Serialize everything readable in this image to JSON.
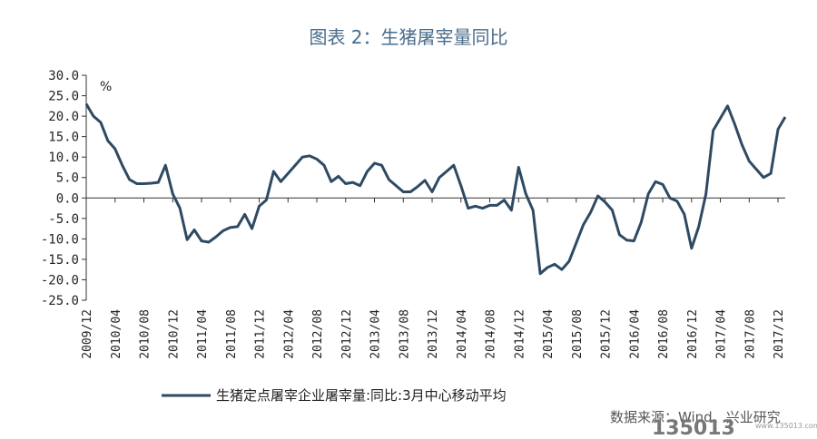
{
  "chart_data": {
    "type": "line",
    "title": "图表 2：生猪屠宰量同比",
    "ylabel": "%",
    "ylim": [
      -25,
      30
    ],
    "yticks": [
      "30.0",
      "25.0",
      "20.0",
      "15.0",
      "10.0",
      "5.0",
      "0.0",
      "-5.0",
      "-10.0",
      "-15.0",
      "-20.0",
      "-25.0"
    ],
    "xticks": [
      "2009/12",
      "2010/04",
      "2010/08",
      "2010/12",
      "2011/04",
      "2011/08",
      "2011/12",
      "2012/04",
      "2012/08",
      "2012/12",
      "2013/04",
      "2013/08",
      "2013/12",
      "2014/04",
      "2014/08",
      "2014/12",
      "2015/04",
      "2015/08",
      "2015/12",
      "2016/04",
      "2016/08",
      "2016/12",
      "2017/04",
      "2017/08",
      "2017/12"
    ],
    "x_start": "2009/12",
    "x_step_months": 1,
    "series": [
      {
        "name": "生猪定点屠宰企业屠宰量:同比:3月中心移动平均",
        "color": "#2e4a63",
        "values": [
          23.0,
          20.0,
          18.5,
          14.0,
          12.0,
          8.0,
          4.5,
          3.5,
          3.5,
          3.6,
          3.8,
          8.0,
          1.0,
          -2.5,
          -10.2,
          -7.8,
          -10.5,
          -10.8,
          -9.5,
          -8.0,
          -7.2,
          -7.0,
          -4.0,
          -7.5,
          -2.0,
          -0.5,
          6.5,
          4.0,
          6.0,
          8.0,
          10.0,
          10.3,
          9.5,
          8.0,
          4.0,
          5.3,
          3.5,
          3.8,
          3.0,
          6.5,
          8.5,
          8.0,
          4.5,
          3.0,
          1.5,
          1.5,
          2.8,
          4.3,
          1.5,
          5.0,
          6.5,
          8.0,
          3.0,
          -2.5,
          -2.0,
          -2.5,
          -1.8,
          -1.8,
          -0.5,
          -3.0,
          7.5,
          1.0,
          -3.0,
          -18.5,
          -17.0,
          -16.2,
          -17.5,
          -15.5,
          -11.0,
          -6.5,
          -3.5,
          0.5,
          -1.0,
          -3.0,
          -9.0,
          -10.3,
          -10.5,
          -6.0,
          1.0,
          4.0,
          3.3,
          0.0,
          -0.8,
          -4.0,
          -12.3,
          -7.0,
          1.0,
          16.5,
          19.5,
          22.5,
          18.0,
          13.0,
          9.0,
          7.0,
          5.0,
          6.0,
          16.8,
          19.8
        ]
      }
    ],
    "legend_label": "生猪定点屠宰企业屠宰量:同比:3月中心移动平均",
    "source_text": "数据来源：Wind、兴业研究",
    "watermark": "135013",
    "watermark_small": "www.135013.com"
  }
}
